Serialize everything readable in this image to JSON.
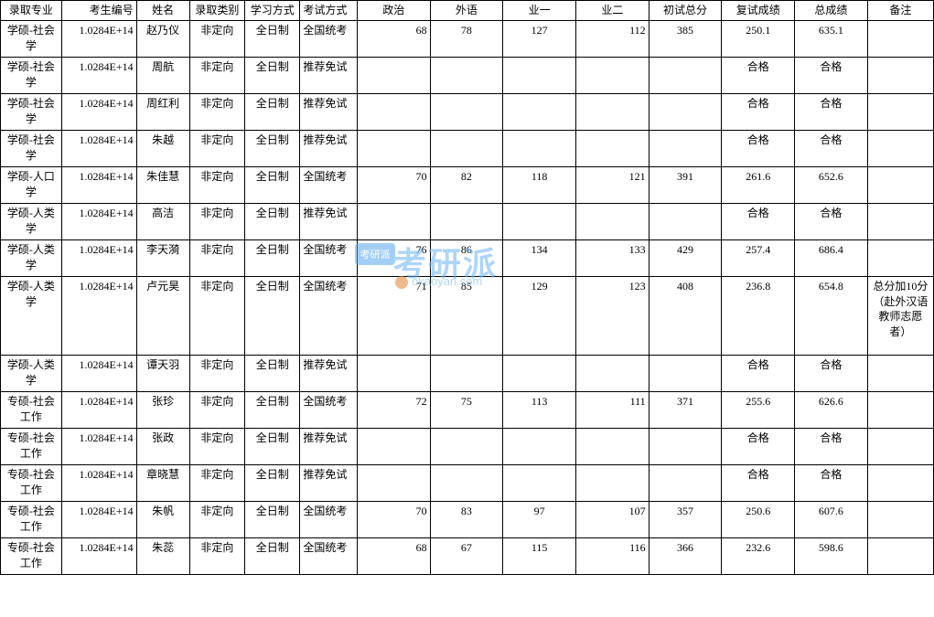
{
  "watermark": {
    "badge": "考研派",
    "text": "考研派",
    "url": "okaoyan.com"
  },
  "table": {
    "columns": [
      "录取专业",
      "考生编号",
      "姓名",
      "录取类别",
      "学习方式",
      "考试方式",
      "政治",
      "外语",
      "业一",
      "业二",
      "初试总分",
      "复试成绩",
      "总成绩",
      "备注"
    ],
    "col_classes": [
      "c-major",
      "c-id",
      "c-name",
      "c-cat",
      "c-mode",
      "c-exam",
      "c-pol",
      "c-lang",
      "c-s1",
      "c-s2",
      "c-init",
      "c-re",
      "c-total",
      "c-note"
    ],
    "rows": [
      {
        "cells": [
          "学硕-社会学",
          "1.0284E+14",
          "赵乃仪",
          "非定向",
          "全日制",
          "全国统考",
          "68",
          "78",
          "127",
          "112",
          "385",
          "250.1",
          "635.1",
          ""
        ]
      },
      {
        "cells": [
          "学硕-社会学",
          "1.0284E+14",
          "周航",
          "非定向",
          "全日制",
          "推荐免试",
          "",
          "",
          "",
          "",
          "",
          "合格",
          "合格",
          ""
        ]
      },
      {
        "cells": [
          "学硕-社会学",
          "1.0284E+14",
          "周红利",
          "非定向",
          "全日制",
          "推荐免试",
          "",
          "",
          "",
          "",
          "",
          "合格",
          "合格",
          ""
        ]
      },
      {
        "cells": [
          "学硕-社会学",
          "1.0284E+14",
          "朱越",
          "非定向",
          "全日制",
          "推荐免试",
          "",
          "",
          "",
          "",
          "",
          "合格",
          "合格",
          ""
        ]
      },
      {
        "cells": [
          "学硕-人口学",
          "1.0284E+14",
          "朱佳慧",
          "非定向",
          "全日制",
          "全国统考",
          "70",
          "82",
          "118",
          "121",
          "391",
          "261.6",
          "652.6",
          ""
        ]
      },
      {
        "cells": [
          "学硕-人类学",
          "1.0284E+14",
          "高洁",
          "非定向",
          "全日制",
          "推荐免试",
          "",
          "",
          "",
          "",
          "",
          "合格",
          "合格",
          ""
        ]
      },
      {
        "cells": [
          "学硕-人类学",
          "1.0284E+14",
          "李天漪",
          "非定向",
          "全日制",
          "全国统考",
          "76",
          "86",
          "134",
          "133",
          "429",
          "257.4",
          "686.4",
          ""
        ]
      },
      {
        "tall": true,
        "cells": [
          "学硕-人类学",
          "1.0284E+14",
          "卢元昊",
          "非定向",
          "全日制",
          "全国统考",
          "71",
          "85",
          "129",
          "123",
          "408",
          "236.8",
          "654.8",
          "总分加10分（赴外汉语教师志愿者）"
        ]
      },
      {
        "cells": [
          "学硕-人类学",
          "1.0284E+14",
          "谭天羽",
          "非定向",
          "全日制",
          "推荐免试",
          "",
          "",
          "",
          "",
          "",
          "合格",
          "合格",
          ""
        ]
      },
      {
        "cells": [
          "专硕-社会工作",
          "1.0284E+14",
          "张珍",
          "非定向",
          "全日制",
          "全国统考",
          "72",
          "75",
          "113",
          "111",
          "371",
          "255.6",
          "626.6",
          ""
        ]
      },
      {
        "cells": [
          "专硕-社会工作",
          "1.0284E+14",
          "张政",
          "非定向",
          "全日制",
          "推荐免试",
          "",
          "",
          "",
          "",
          "",
          "合格",
          "合格",
          ""
        ]
      },
      {
        "cells": [
          "专硕-社会工作",
          "1.0284E+14",
          "章晓慧",
          "非定向",
          "全日制",
          "推荐免试",
          "",
          "",
          "",
          "",
          "",
          "合格",
          "合格",
          ""
        ]
      },
      {
        "cells": [
          "专硕-社会工作",
          "1.0284E+14",
          "朱帆",
          "非定向",
          "全日制",
          "全国统考",
          "70",
          "83",
          "97",
          "107",
          "357",
          "250.6",
          "607.6",
          ""
        ]
      },
      {
        "cells": [
          "专硕-社会工作",
          "1.0284E+14",
          "朱蕊",
          "非定向",
          "全日制",
          "全国统考",
          "68",
          "67",
          "115",
          "116",
          "366",
          "232.6",
          "598.6",
          ""
        ]
      }
    ]
  }
}
